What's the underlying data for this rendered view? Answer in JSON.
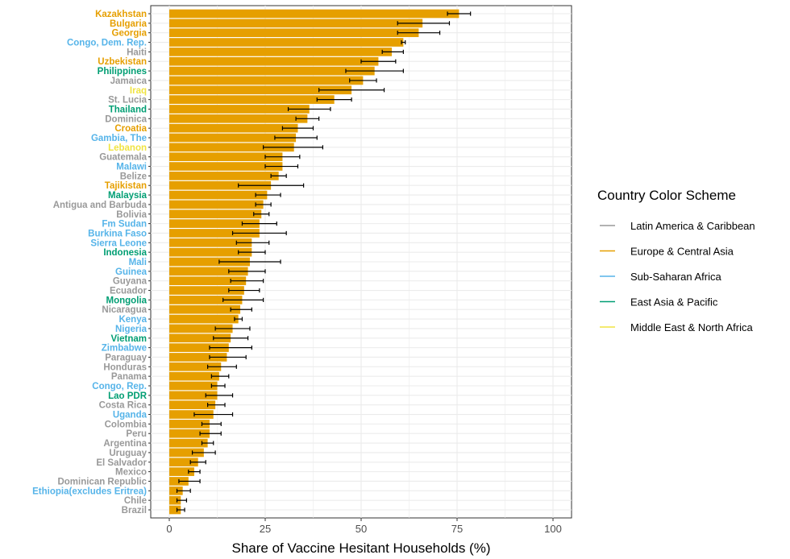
{
  "chart_data": {
    "type": "bar",
    "orientation": "horizontal",
    "title": "",
    "xlabel": "Share of Vaccine Hesitant Households (%)",
    "ylabel": "",
    "xlim": [
      0,
      100
    ],
    "xticks": [
      0,
      25,
      50,
      75,
      100
    ],
    "grid": true,
    "bar_color": "#E69F00",
    "error_bar_color": "#000000",
    "legend": {
      "title": "Country Color Scheme",
      "placement": "right",
      "entries": [
        {
          "label": "Latin America & Caribbean",
          "color": "#999999"
        },
        {
          "label": "Europe & Central Asia",
          "color": "#E69F00"
        },
        {
          "label": "Sub-Saharan Africa",
          "color": "#56B4E9"
        },
        {
          "label": "East Asia & Pacific",
          "color": "#009E73"
        },
        {
          "label": "Middle East & North Africa",
          "color": "#F0E442"
        }
      ]
    },
    "categories": [
      {
        "name": "Kazakhstan",
        "region": "Europe & Central Asia",
        "value": 75.5,
        "lo": 72.5,
        "hi": 78.5
      },
      {
        "name": "Bulgaria",
        "region": "Europe & Central Asia",
        "value": 66.0,
        "lo": 59.5,
        "hi": 73.0
      },
      {
        "name": "Georgia",
        "region": "Europe & Central Asia",
        "value": 65.0,
        "lo": 59.5,
        "hi": 70.5
      },
      {
        "name": "Congo, Dem. Rep.",
        "region": "Sub-Saharan Africa",
        "value": 61.0,
        "lo": 60.5,
        "hi": 61.5
      },
      {
        "name": "Haiti",
        "region": "Latin America & Caribbean",
        "value": 58.0,
        "lo": 55.5,
        "hi": 61.0
      },
      {
        "name": "Uzbekistan",
        "region": "Europe & Central Asia",
        "value": 54.5,
        "lo": 50.0,
        "hi": 59.0
      },
      {
        "name": "Philippines",
        "region": "East Asia & Pacific",
        "value": 53.5,
        "lo": 46.0,
        "hi": 61.0
      },
      {
        "name": "Jamaica",
        "region": "Latin America & Caribbean",
        "value": 50.5,
        "lo": 47.0,
        "hi": 54.0
      },
      {
        "name": "Iraq",
        "region": "Middle East & North Africa",
        "value": 47.5,
        "lo": 39.0,
        "hi": 56.0
      },
      {
        "name": "St. Lucia",
        "region": "Latin America & Caribbean",
        "value": 43.0,
        "lo": 38.5,
        "hi": 47.5
      },
      {
        "name": "Thailand",
        "region": "East Asia & Pacific",
        "value": 36.5,
        "lo": 31.0,
        "hi": 42.0
      },
      {
        "name": "Dominica",
        "region": "Latin America & Caribbean",
        "value": 36.0,
        "lo": 33.0,
        "hi": 39.0
      },
      {
        "name": "Croatia",
        "region": "Europe & Central Asia",
        "value": 33.5,
        "lo": 29.5,
        "hi": 37.5
      },
      {
        "name": "Gambia, The",
        "region": "Sub-Saharan Africa",
        "value": 33.0,
        "lo": 27.5,
        "hi": 38.5
      },
      {
        "name": "Lebanon",
        "region": "Middle East & North Africa",
        "value": 32.5,
        "lo": 24.5,
        "hi": 40.0
      },
      {
        "name": "Guatemala",
        "region": "Latin America & Caribbean",
        "value": 29.5,
        "lo": 25.0,
        "hi": 34.0
      },
      {
        "name": "Malawi",
        "region": "Sub-Saharan Africa",
        "value": 29.5,
        "lo": 25.0,
        "hi": 33.5
      },
      {
        "name": "Belize",
        "region": "Latin America & Caribbean",
        "value": 28.5,
        "lo": 26.5,
        "hi": 30.5
      },
      {
        "name": "Tajikistan",
        "region": "Europe & Central Asia",
        "value": 26.5,
        "lo": 18.0,
        "hi": 35.0
      },
      {
        "name": "Malaysia",
        "region": "East Asia & Pacific",
        "value": 25.5,
        "lo": 22.5,
        "hi": 29.0
      },
      {
        "name": "Antigua and Barbuda",
        "region": "Latin America & Caribbean",
        "value": 24.5,
        "lo": 22.5,
        "hi": 26.5
      },
      {
        "name": "Bolivia",
        "region": "Latin America & Caribbean",
        "value": 24.0,
        "lo": 22.0,
        "hi": 26.0
      },
      {
        "name": "Fm Sudan",
        "region": "Sub-Saharan Africa",
        "value": 23.5,
        "lo": 19.0,
        "hi": 28.0
      },
      {
        "name": "Burkina Faso",
        "region": "Sub-Saharan Africa",
        "value": 23.5,
        "lo": 16.5,
        "hi": 30.5
      },
      {
        "name": "Sierra Leone",
        "region": "Sub-Saharan Africa",
        "value": 21.5,
        "lo": 17.5,
        "hi": 26.0
      },
      {
        "name": "Indonesia",
        "region": "East Asia & Pacific",
        "value": 21.5,
        "lo": 18.0,
        "hi": 25.0
      },
      {
        "name": "Mali",
        "region": "Sub-Saharan Africa",
        "value": 21.0,
        "lo": 13.0,
        "hi": 29.0
      },
      {
        "name": "Guinea",
        "region": "Sub-Saharan Africa",
        "value": 20.5,
        "lo": 15.5,
        "hi": 25.0
      },
      {
        "name": "Guyana",
        "region": "Latin America & Caribbean",
        "value": 20.0,
        "lo": 16.0,
        "hi": 24.5
      },
      {
        "name": "Ecuador",
        "region": "Latin America & Caribbean",
        "value": 19.5,
        "lo": 15.5,
        "hi": 23.5
      },
      {
        "name": "Mongolia",
        "region": "East Asia & Pacific",
        "value": 19.0,
        "lo": 14.0,
        "hi": 24.5
      },
      {
        "name": "Nicaragua",
        "region": "Latin America & Caribbean",
        "value": 18.5,
        "lo": 16.0,
        "hi": 21.5
      },
      {
        "name": "Kenya",
        "region": "Sub-Saharan Africa",
        "value": 18.0,
        "lo": 17.0,
        "hi": 19.0
      },
      {
        "name": "Nigeria",
        "region": "Sub-Saharan Africa",
        "value": 16.5,
        "lo": 12.0,
        "hi": 21.0
      },
      {
        "name": "Vietnam",
        "region": "East Asia & Pacific",
        "value": 16.0,
        "lo": 11.5,
        "hi": 20.5
      },
      {
        "name": "Zimbabwe",
        "region": "Sub-Saharan Africa",
        "value": 15.5,
        "lo": 10.5,
        "hi": 21.5
      },
      {
        "name": "Paraguay",
        "region": "Latin America & Caribbean",
        "value": 15.0,
        "lo": 10.5,
        "hi": 20.0
      },
      {
        "name": "Honduras",
        "region": "Latin America & Caribbean",
        "value": 13.5,
        "lo": 10.0,
        "hi": 17.5
      },
      {
        "name": "Panama",
        "region": "Latin America & Caribbean",
        "value": 13.0,
        "lo": 11.0,
        "hi": 15.5
      },
      {
        "name": "Congo, Rep.",
        "region": "Sub-Saharan Africa",
        "value": 12.5,
        "lo": 11.0,
        "hi": 14.5
      },
      {
        "name": "Lao PDR",
        "region": "East Asia & Pacific",
        "value": 12.5,
        "lo": 9.5,
        "hi": 16.5
      },
      {
        "name": "Costa Rica",
        "region": "Latin America & Caribbean",
        "value": 12.0,
        "lo": 10.0,
        "hi": 14.5
      },
      {
        "name": "Uganda",
        "region": "Sub-Saharan Africa",
        "value": 11.5,
        "lo": 6.5,
        "hi": 16.5
      },
      {
        "name": "Colombia",
        "region": "Latin America & Caribbean",
        "value": 10.5,
        "lo": 8.5,
        "hi": 13.5
      },
      {
        "name": "Peru",
        "region": "Latin America & Caribbean",
        "value": 10.5,
        "lo": 8.0,
        "hi": 13.5
      },
      {
        "name": "Argentina",
        "region": "Latin America & Caribbean",
        "value": 10.0,
        "lo": 8.5,
        "hi": 11.5
      },
      {
        "name": "Uruguay",
        "region": "Latin America & Caribbean",
        "value": 9.0,
        "lo": 6.0,
        "hi": 12.0
      },
      {
        "name": "El Salvador",
        "region": "Latin America & Caribbean",
        "value": 7.5,
        "lo": 5.5,
        "hi": 9.5
      },
      {
        "name": "Mexico",
        "region": "Latin America & Caribbean",
        "value": 6.5,
        "lo": 5.0,
        "hi": 8.0
      },
      {
        "name": "Dominican Republic",
        "region": "Latin America & Caribbean",
        "value": 5.0,
        "lo": 2.5,
        "hi": 8.0
      },
      {
        "name": "Ethiopia(excludes Eritrea)",
        "region": "Sub-Saharan Africa",
        "value": 3.5,
        "lo": 2.0,
        "hi": 5.5
      },
      {
        "name": "Chile",
        "region": "Latin America & Caribbean",
        "value": 3.0,
        "lo": 2.0,
        "hi": 4.5
      },
      {
        "name": "Brazil",
        "region": "Latin America & Caribbean",
        "value": 3.0,
        "lo": 2.0,
        "hi": 4.0
      }
    ]
  }
}
